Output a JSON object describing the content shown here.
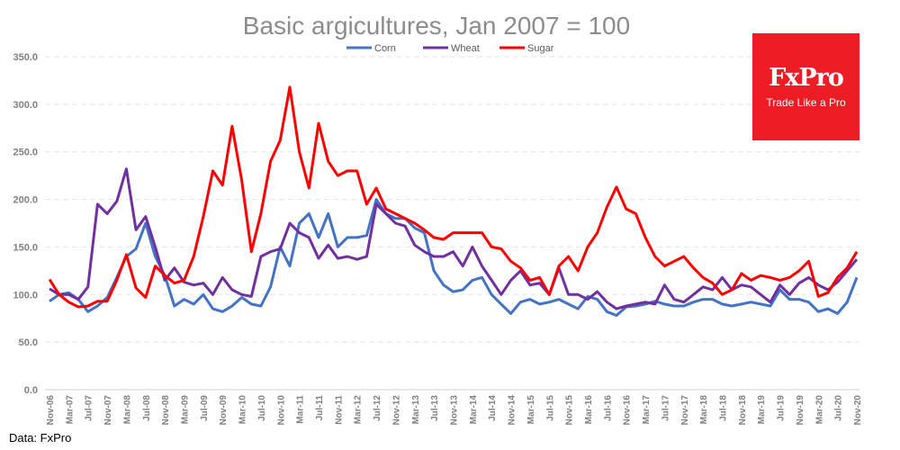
{
  "chart_data": {
    "type": "line",
    "title": "Basic argicultures, Jan 2007 = 100",
    "xlabel": "",
    "ylabel": "",
    "ylim": [
      0,
      350
    ],
    "yticks": [
      "0.0",
      "50.0",
      "100.0",
      "150.0",
      "200.0",
      "250.0",
      "300.0",
      "350.0"
    ],
    "ytick_values": [
      0,
      50,
      100,
      150,
      200,
      250,
      300,
      350
    ],
    "x_start": "Nov-06",
    "x_step_months": 2,
    "xtick_labels": [
      "Nov-06",
      "Mar-07",
      "Jul-07",
      "Nov-07",
      "Mar-08",
      "Jul-08",
      "Nov-08",
      "Mar-09",
      "Jul-09",
      "Nov-09",
      "Mar-10",
      "Jul-10",
      "Nov-10",
      "Mar-11",
      "Jul-11",
      "Nov-11",
      "Mar-12",
      "Jul-12",
      "Nov-12",
      "Mar-13",
      "Jul-13",
      "Nov-13",
      "Mar-14",
      "Jul-14",
      "Nov-14",
      "Mar-15",
      "Jul-15",
      "Nov-15",
      "Mar-16",
      "Jul-16",
      "Nov-16",
      "Mar-17",
      "Jul-17",
      "Nov-17",
      "Mar-18",
      "Jul-18",
      "Nov-18",
      "Mar-19",
      "Jul-19",
      "Nov-19",
      "Mar-20",
      "Jul-20",
      "Nov-20"
    ],
    "grid": true,
    "legend_position": "top-center",
    "series": [
      {
        "name": "Corn",
        "color": "#4472c4",
        "values": [
          93,
          100,
          102,
          95,
          82,
          88,
          97,
          118,
          140,
          148,
          175,
          140,
          120,
          88,
          95,
          90,
          100,
          85,
          82,
          88,
          97,
          90,
          88,
          108,
          150,
          130,
          175,
          185,
          160,
          185,
          150,
          160,
          160,
          162,
          200,
          185,
          180,
          180,
          170,
          165,
          125,
          110,
          103,
          105,
          115,
          118,
          100,
          90,
          80,
          92,
          95,
          90,
          92,
          95,
          90,
          85,
          98,
          95,
          82,
          78,
          87,
          88,
          90,
          93,
          90,
          88,
          88,
          92,
          95,
          95,
          90,
          88,
          90,
          92,
          90,
          88,
          105,
          95,
          95,
          92,
          82,
          85,
          80,
          92,
          118
        ]
      },
      {
        "name": "Wheat",
        "color": "#7030a0",
        "values": [
          106,
          100,
          100,
          95,
          108,
          195,
          185,
          198,
          232,
          168,
          182,
          150,
          115,
          128,
          113,
          110,
          112,
          100,
          118,
          105,
          100,
          98,
          140,
          145,
          148,
          175,
          165,
          160,
          138,
          152,
          138,
          140,
          137,
          140,
          195,
          185,
          175,
          172,
          152,
          145,
          140,
          140,
          145,
          130,
          150,
          130,
          115,
          100,
          115,
          125,
          110,
          112,
          100,
          128,
          100,
          100,
          95,
          103,
          92,
          85,
          88,
          90,
          92,
          90,
          110,
          95,
          92,
          100,
          108,
          105,
          118,
          105,
          110,
          108,
          100,
          92,
          110,
          100,
          112,
          118,
          110,
          105,
          113,
          125,
          137
        ]
      },
      {
        "name": "Sugar",
        "color": "#ff0000",
        "values": [
          116,
          100,
          92,
          87,
          88,
          93,
          93,
          115,
          142,
          107,
          97,
          130,
          120,
          112,
          115,
          140,
          182,
          230,
          215,
          277,
          220,
          145,
          185,
          240,
          262,
          318,
          250,
          212,
          280,
          240,
          225,
          230,
          230,
          195,
          212,
          190,
          185,
          180,
          175,
          168,
          160,
          158,
          165,
          165,
          165,
          165,
          150,
          148,
          135,
          128,
          115,
          118,
          100,
          130,
          140,
          125,
          150,
          165,
          192,
          213,
          190,
          185,
          160,
          140,
          130,
          135,
          140,
          128,
          118,
          112,
          100,
          105,
          122,
          115,
          120,
          118,
          115,
          118,
          125,
          135,
          98,
          102,
          118,
          128,
          145
        ]
      }
    ]
  },
  "logo": {
    "brand": "FxPro",
    "tagline": "Trade Like a Pro"
  },
  "source": "Data: FxPro"
}
